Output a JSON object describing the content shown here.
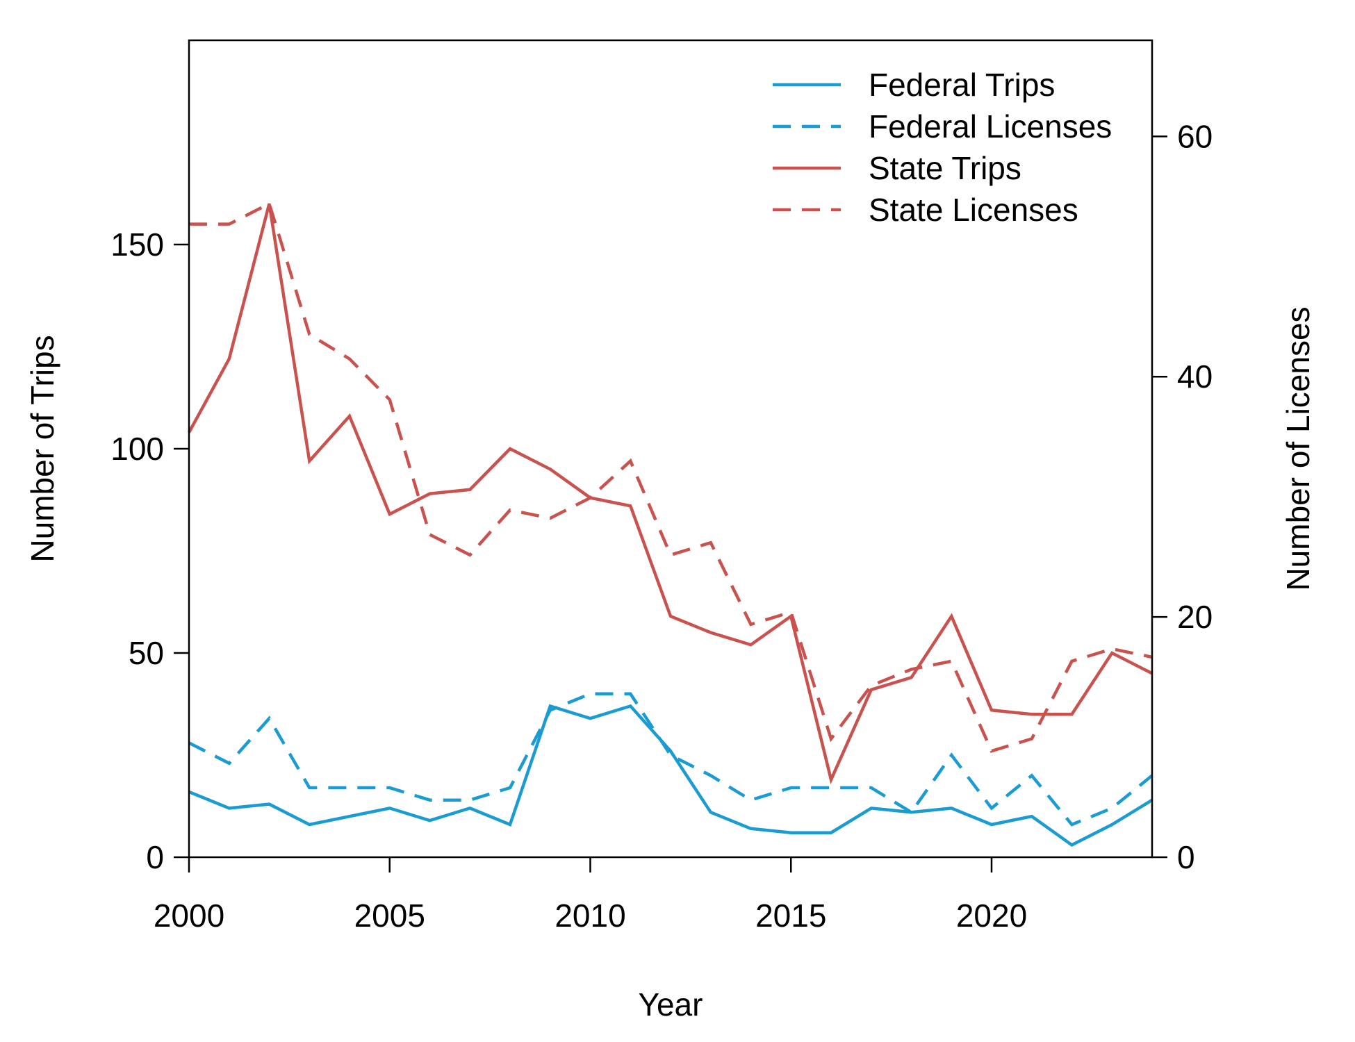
{
  "chart_data": {
    "type": "line",
    "title": "",
    "xlabel": "Year",
    "ylabel_left": "Number of Trips",
    "ylabel_right": "Number of Licenses",
    "xlim": [
      2000,
      2024
    ],
    "ylim_left": [
      0,
      200
    ],
    "ylim_right": [
      0,
      68
    ],
    "x_ticks": [
      "2000",
      "2005",
      "2010",
      "2015",
      "2020"
    ],
    "y_left_ticks": [
      "0",
      "50",
      "100",
      "150"
    ],
    "y_right_ticks": [
      "0",
      "20",
      "40",
      "60"
    ],
    "grid": false,
    "legend_position": "top-right",
    "x": [
      2000,
      2001,
      2002,
      2003,
      2004,
      2005,
      2006,
      2007,
      2008,
      2009,
      2010,
      2011,
      2012,
      2013,
      2014,
      2015,
      2016,
      2017,
      2018,
      2019,
      2020,
      2021,
      2022,
      2023,
      2024
    ],
    "series": [
      {
        "name": "Federal Trips",
        "axis": "left",
        "style": "solid",
        "color": "#1a9bd1",
        "values": [
          16,
          12,
          13,
          8,
          10,
          12,
          9,
          12,
          8,
          37,
          34,
          37,
          26,
          11,
          7,
          6,
          6,
          12,
          11,
          12,
          8,
          10,
          3,
          8,
          14
        ]
      },
      {
        "name": "Federal Licenses",
        "axis": "left",
        "style": "dashed",
        "color": "#1a9bd1",
        "values": [
          28,
          23,
          34,
          17,
          17,
          17,
          14,
          14,
          17,
          36,
          40,
          40,
          25,
          20,
          14,
          17,
          17,
          17,
          11,
          25,
          12,
          20,
          8,
          12,
          20
        ]
      },
      {
        "name": "State Trips",
        "axis": "left",
        "style": "solid",
        "color": "#c9524f",
        "values": [
          104,
          122,
          160,
          97,
          108,
          84,
          89,
          90,
          100,
          95,
          88,
          86,
          59,
          55,
          52,
          59,
          19,
          41,
          44,
          59,
          36,
          35,
          35,
          50,
          45
        ]
      },
      {
        "name": "State Licenses",
        "axis": "left",
        "style": "dashed",
        "color": "#c9524f",
        "values": [
          155,
          155,
          160,
          128,
          122,
          112,
          79,
          74,
          85,
          83,
          88,
          97,
          74,
          77,
          57,
          60,
          29,
          42,
          46,
          48,
          26,
          29,
          48,
          51,
          49
        ]
      }
    ]
  }
}
